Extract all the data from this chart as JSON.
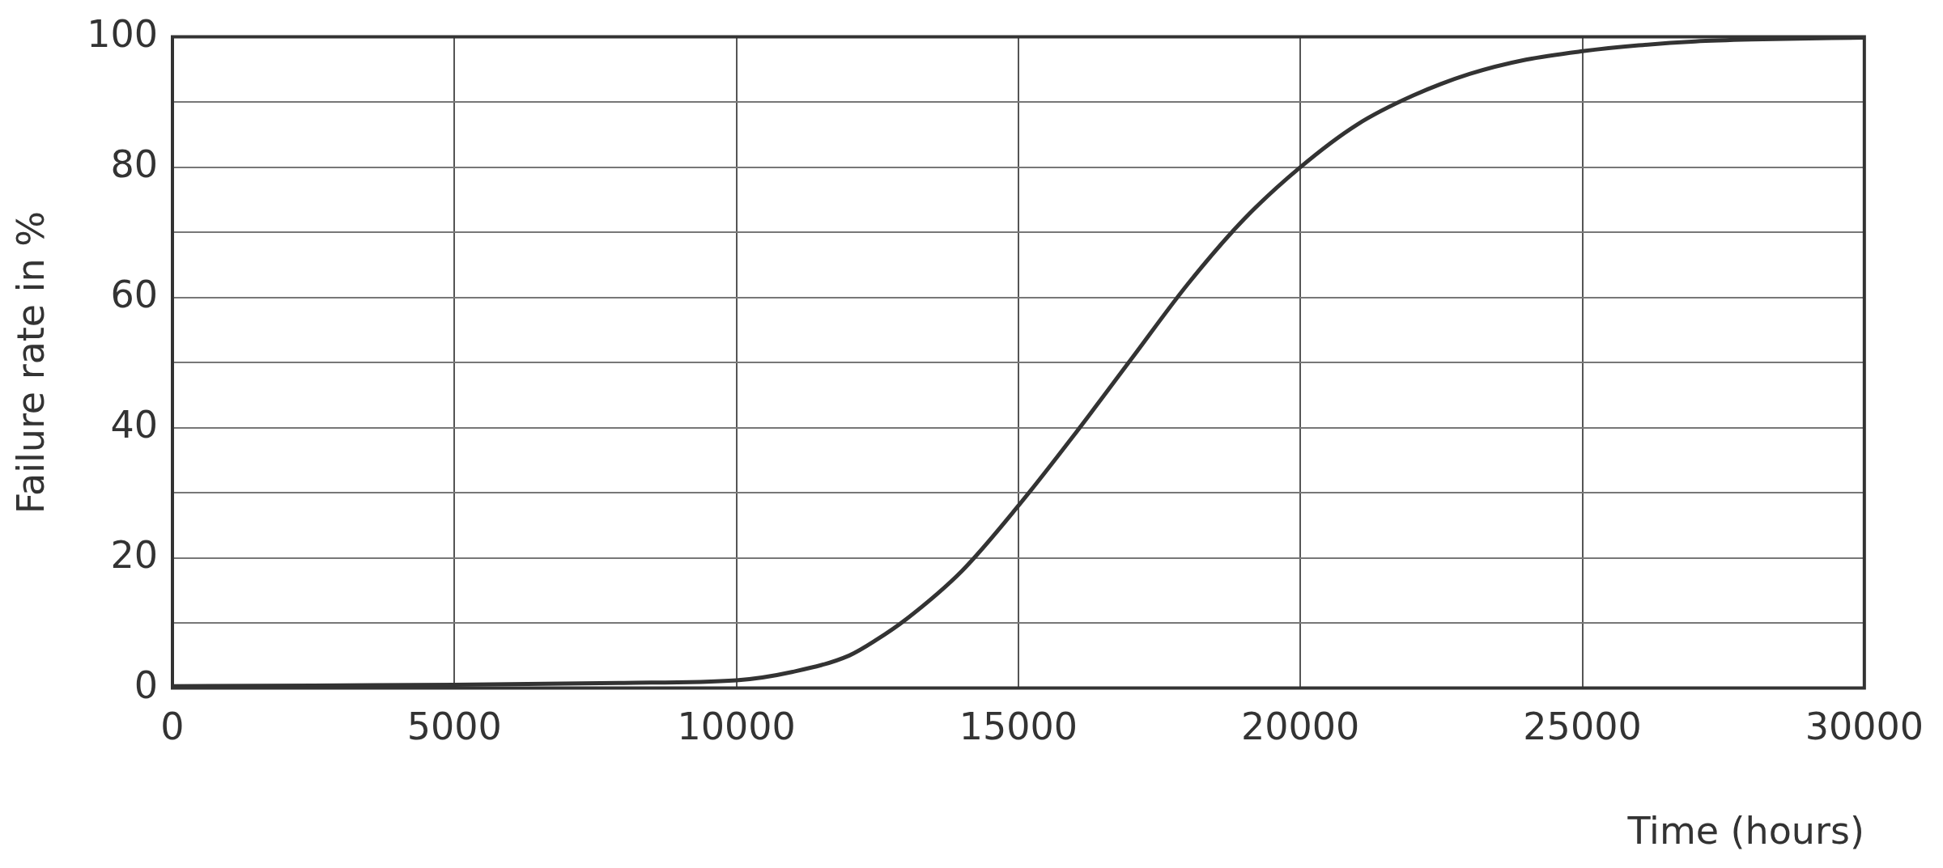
{
  "chart_data": {
    "type": "line",
    "xlabel": "Time (hours)",
    "ylabel": "Failure rate in %",
    "x": [
      0,
      2500,
      5000,
      8000,
      10000,
      11000,
      12000,
      12500,
      13000,
      14000,
      15000,
      16000,
      17000,
      18000,
      19000,
      20000,
      21000,
      22000,
      23000,
      24000,
      25000,
      26000,
      27000,
      28000,
      30000
    ],
    "series": [
      {
        "color": "#333333",
        "values": [
          0.3,
          0.4,
          0.5,
          0.8,
          1.2,
          2.5,
          5,
          7.5,
          10.5,
          18,
          28,
          39,
          50.5,
          62,
          72,
          80,
          86.5,
          91,
          94.3,
          96.5,
          97.8,
          98.7,
          99.3,
          99.6,
          99.9
        ]
      }
    ],
    "xlim": [
      0,
      30000
    ],
    "xticks": [
      0,
      5000,
      10000,
      15000,
      20000,
      25000,
      30000
    ],
    "ylim": [
      0,
      100
    ],
    "yticks": [
      0,
      {
        "value": 10,
        "label": null
      },
      20,
      {
        "value": 30,
        "label": null
      },
      40,
      {
        "value": 50,
        "label": null
      },
      60,
      {
        "value": 70,
        "label": null
      },
      80,
      {
        "value": 90,
        "label": null
      },
      100
    ],
    "grid": true,
    "legend": false,
    "marker": "none",
    "line_style": "solid"
  }
}
